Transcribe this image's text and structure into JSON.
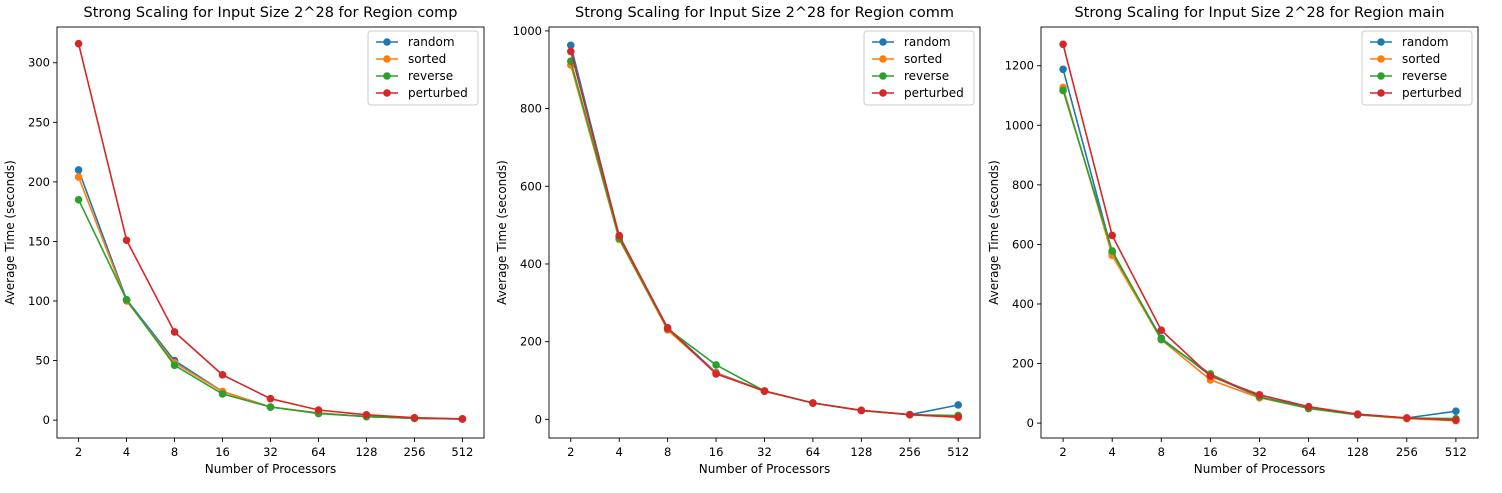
{
  "series_colors": {
    "random": "#1f77b4",
    "sorted": "#ff7f0e",
    "reverse": "#2ca02c",
    "perturbed": "#d62728"
  },
  "chart_data": [
    {
      "type": "line",
      "title": "Strong Scaling for Input Size 2^28 for Region comp",
      "xlabel": "Number of Processors",
      "ylabel": "Average Time (seconds)",
      "categories": [
        "2",
        "4",
        "8",
        "16",
        "32",
        "64",
        "128",
        "256",
        "512"
      ],
      "ylim": [
        -15,
        330
      ],
      "yticks": [
        0,
        50,
        100,
        150,
        200,
        250,
        300
      ],
      "legend": "top-right",
      "grid": false,
      "series": [
        {
          "name": "random",
          "color": "#1f77b4",
          "values": [
            210,
            101,
            50,
            24,
            11,
            6,
            3,
            1.5,
            1
          ]
        },
        {
          "name": "sorted",
          "color": "#ff7f0e",
          "values": [
            204,
            100,
            48,
            24,
            11,
            6,
            3,
            1.5,
            1
          ]
        },
        {
          "name": "reverse",
          "color": "#2ca02c",
          "values": [
            185,
            101,
            46,
            22,
            11,
            5.5,
            3,
            1.5,
            1
          ]
        },
        {
          "name": "perturbed",
          "color": "#d62728",
          "values": [
            316,
            151,
            74,
            38,
            18,
            8.5,
            4.5,
            2,
            1
          ]
        }
      ]
    },
    {
      "type": "line",
      "title": "Strong Scaling for Input Size 2^28 for Region comm",
      "xlabel": "Number of Processors",
      "ylabel": "Average Time (seconds)",
      "categories": [
        "2",
        "4",
        "8",
        "16",
        "32",
        "64",
        "128",
        "256",
        "512"
      ],
      "ylim": [
        -48,
        1010
      ],
      "yticks": [
        0,
        200,
        400,
        600,
        800,
        1000
      ],
      "legend": "top-right",
      "grid": false,
      "series": [
        {
          "name": "random",
          "color": "#1f77b4",
          "values": [
            963,
            470,
            236,
            120,
            73,
            42,
            23,
            12,
            37
          ]
        },
        {
          "name": "sorted",
          "color": "#ff7f0e",
          "values": [
            912,
            463,
            230,
            119,
            72,
            42,
            23,
            12,
            5
          ]
        },
        {
          "name": "reverse",
          "color": "#2ca02c",
          "values": [
            922,
            466,
            233,
            140,
            73,
            42,
            23,
            12,
            10
          ]
        },
        {
          "name": "perturbed",
          "color": "#d62728",
          "values": [
            947,
            473,
            235,
            117,
            73,
            42,
            23,
            12,
            6
          ]
        }
      ]
    },
    {
      "type": "line",
      "title": "Strong Scaling for Input Size 2^28 for Region main",
      "xlabel": "Number of Processors",
      "ylabel": "Average Time (seconds)",
      "categories": [
        "2",
        "4",
        "8",
        "16",
        "32",
        "64",
        "128",
        "256",
        "512"
      ],
      "ylim": [
        -50,
        1330
      ],
      "yticks": [
        0,
        200,
        400,
        600,
        800,
        1000,
        1200
      ],
      "legend": "top-right",
      "grid": false,
      "series": [
        {
          "name": "random",
          "color": "#1f77b4",
          "values": [
            1188,
            573,
            285,
            160,
            88,
            52,
            30,
            17,
            40
          ]
        },
        {
          "name": "sorted",
          "color": "#ff7f0e",
          "values": [
            1127,
            563,
            280,
            145,
            85,
            50,
            28,
            15,
            8
          ]
        },
        {
          "name": "reverse",
          "color": "#2ca02c",
          "values": [
            1117,
            578,
            281,
            165,
            88,
            49,
            28,
            17,
            15
          ]
        },
        {
          "name": "perturbed",
          "color": "#d62728",
          "values": [
            1272,
            630,
            312,
            158,
            95,
            55,
            30,
            17,
            10
          ]
        }
      ]
    }
  ]
}
